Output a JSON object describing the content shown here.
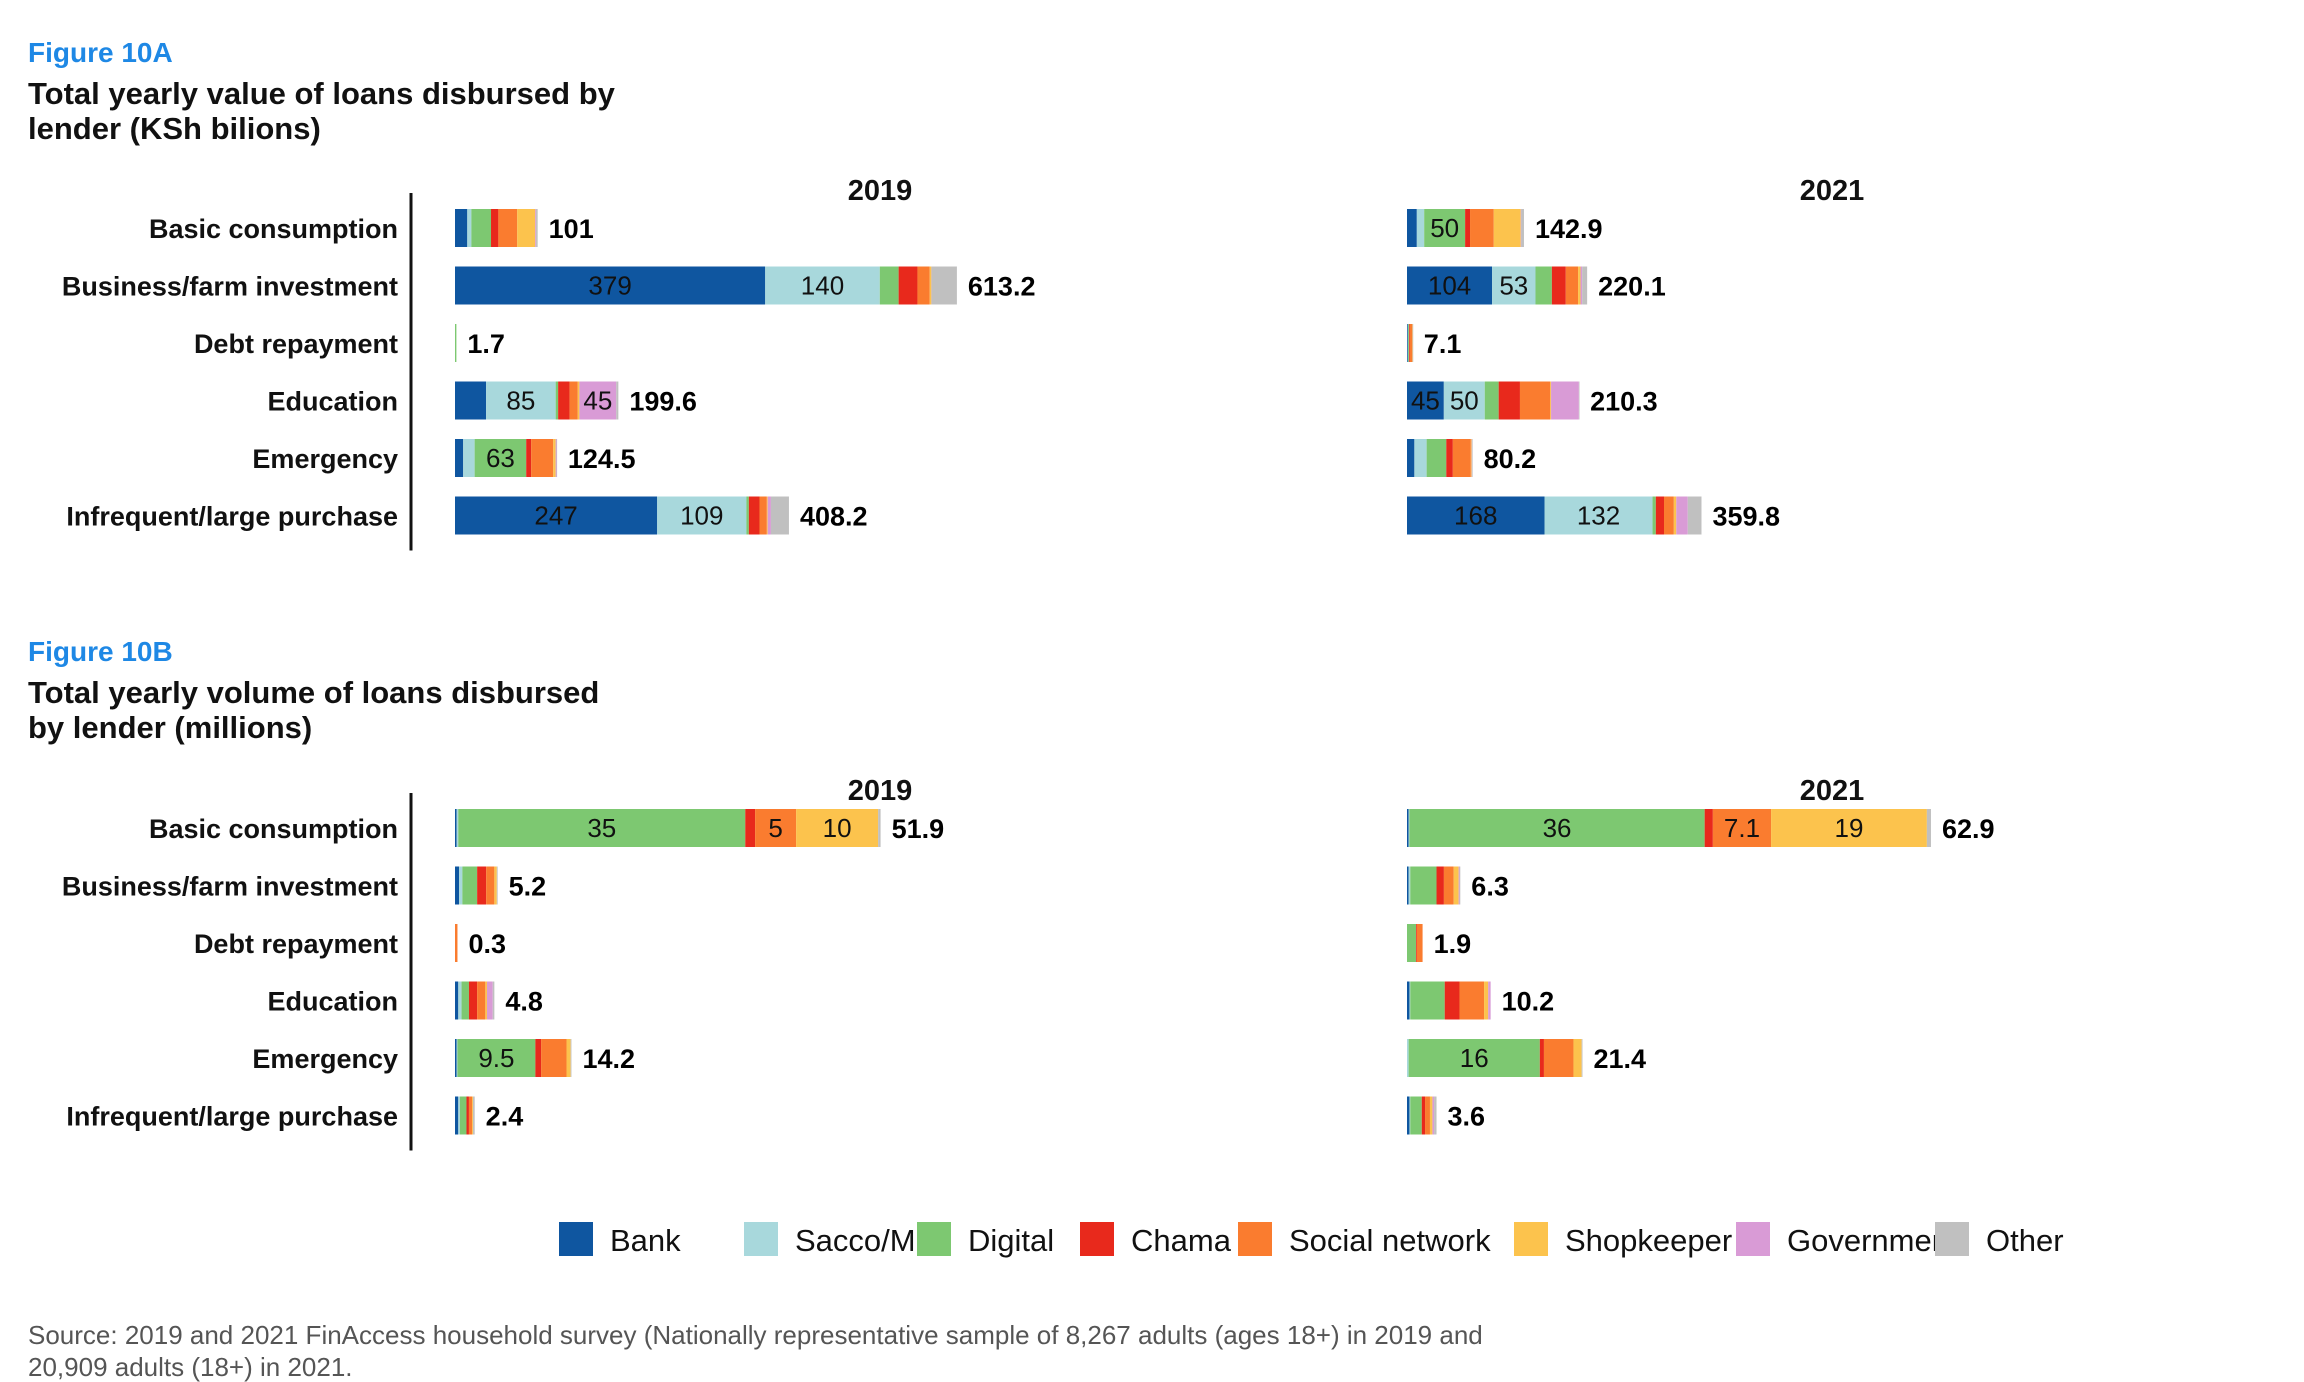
{
  "colors": {
    "Bank": "#0F56A0",
    "Sacco/MFI": "#A8D8DC",
    "Digital": "#7DC871",
    "Chama": "#E8291C",
    "Social network": "#FA7C2F",
    "Shopkeeper": "#FCC34D",
    "Government": "#D99BD6",
    "Other": "#C0C0C0"
  },
  "lenders": [
    "Bank",
    "Sacco/MFI",
    "Digital",
    "Chama",
    "Social network",
    "Shopkeeper",
    "Government",
    "Other"
  ],
  "categories": [
    "Basic consumption",
    "Business/farm investment",
    "Debt repayment",
    "Education",
    "Emergency",
    "Infrequent/large purchase"
  ],
  "source": {
    "line1": "Source: 2019 and 2021 FinAccess household survey (Nationally representative sample of 8,267 adults (ages 18+) in 2019 and",
    "line2": "20,909 adults (18+) in 2021."
  },
  "chart_data": [
    {
      "type": "bar",
      "orientation": "horizontal-stacked",
      "figure_label": "Figure 10A",
      "title_line1": "Total yearly value of loans disbursed by",
      "title_line2": "lender (KSh bilions)",
      "panels": [
        {
          "title": "2019",
          "totals": [
            "101",
            "613.2",
            "1.7",
            "199.6",
            "124.5",
            "408.2"
          ],
          "series": [
            {
              "name": "Bank",
              "values": [
                15,
                379,
                0,
                38,
                10,
                247
              ]
            },
            {
              "name": "Sacco/MFI",
              "values": [
                5,
                140,
                0,
                85,
                14,
                109
              ]
            },
            {
              "name": "Digital",
              "values": [
                24,
                23,
                1.7,
                3,
                63,
                3
              ]
            },
            {
              "name": "Chama",
              "values": [
                9,
                23,
                0,
                14,
                6,
                13
              ]
            },
            {
              "name": "Social network",
              "values": [
                23,
                15,
                0,
                10,
                27,
                9
              ]
            },
            {
              "name": "Shopkeeper",
              "values": [
                22,
                2,
                0,
                2,
                3,
                1
              ]
            },
            {
              "name": "Government",
              "values": [
                1,
                0.2,
                0,
                45,
                1,
                4
              ]
            },
            {
              "name": "Other",
              "values": [
                2,
                31,
                0,
                2.6,
                0.5,
                22
              ]
            }
          ]
        },
        {
          "title": "2021",
          "totals": [
            "142.9",
            "220.1",
            "7.1",
            "210.3",
            "80.2",
            "359.8"
          ],
          "series": [
            {
              "name": "Bank",
              "values": [
                12,
                104,
                1,
                45,
                9,
                168
              ]
            },
            {
              "name": "Sacco/MFI",
              "values": [
                9,
                53,
                0.5,
                50,
                15,
                132
              ]
            },
            {
              "name": "Digital",
              "values": [
                50,
                20,
                1,
                17,
                24,
                4
              ]
            },
            {
              "name": "Chama",
              "values": [
                6,
                17,
                1,
                26,
                8,
                10
              ]
            },
            {
              "name": "Social network",
              "values": [
                29,
                15,
                3,
                37,
                22,
                12
              ]
            },
            {
              "name": "Shopkeeper",
              "values": [
                33,
                3,
                0.4,
                1,
                1,
                3
              ]
            },
            {
              "name": "Government",
              "values": [
                0.5,
                2,
                0,
                34,
                0.5,
                14
              ]
            },
            {
              "name": "Other",
              "values": [
                3.4,
                6.1,
                0.2,
                0.3,
                0.7,
                16.8
              ]
            }
          ]
        }
      ]
    },
    {
      "type": "bar",
      "orientation": "horizontal-stacked",
      "figure_label": "Figure 10B",
      "title_line1": "Total yearly volume of loans disbursed",
      "title_line2": "by lender (millions)",
      "panels": [
        {
          "title": "2019",
          "totals": [
            "51.9",
            "5.2",
            "0.3",
            "4.8",
            "14.2",
            "2.4"
          ],
          "series": [
            {
              "name": "Bank",
              "values": [
                0.2,
                0.5,
                0,
                0.4,
                0.2,
                0.4
              ]
            },
            {
              "name": "Sacco/MFI",
              "values": [
                0.2,
                0.4,
                0,
                0.4,
                0.1,
                0.2
              ]
            },
            {
              "name": "Digital",
              "values": [
                35,
                1.8,
                0,
                0.9,
                9.5,
                0.8
              ]
            },
            {
              "name": "Chama",
              "values": [
                1.2,
                1.1,
                0,
                1.0,
                0.7,
                0.3
              ]
            },
            {
              "name": "Social network",
              "values": [
                5,
                1.0,
                0.3,
                1.0,
                3.1,
                0.4
              ]
            },
            {
              "name": "Shopkeeper",
              "values": [
                10,
                0.3,
                0,
                0.2,
                0.5,
                0.1
              ]
            },
            {
              "name": "Government",
              "values": [
                0,
                0,
                0,
                0.7,
                0,
                0
              ]
            },
            {
              "name": "Other",
              "values": [
                0.3,
                0.1,
                0,
                0.2,
                0.1,
                0.2
              ]
            }
          ]
        },
        {
          "title": "2021",
          "totals": [
            "62.9",
            "6.3",
            "1.9",
            "10.2",
            "21.4",
            "3.6"
          ],
          "series": [
            {
              "name": "Bank",
              "values": [
                0.2,
                0.2,
                0,
                0.3,
                0,
                0.3
              ]
            },
            {
              "name": "Sacco/MFI",
              "values": [
                0.1,
                0.2,
                0,
                0.1,
                0.2,
                0.1
              ]
            },
            {
              "name": "Digital",
              "values": [
                36,
                3.2,
                1.1,
                4.2,
                16,
                1.4
              ]
            },
            {
              "name": "Chama",
              "values": [
                1,
                0.9,
                0.1,
                1.8,
                0.5,
                0.4
              ]
            },
            {
              "name": "Social network",
              "values": [
                7.1,
                1.2,
                0.7,
                3,
                3.6,
                0.6
              ]
            },
            {
              "name": "Shopkeeper",
              "values": [
                19,
                0.6,
                0,
                0.5,
                1.0,
                0.3
              ]
            },
            {
              "name": "Government",
              "values": [
                0,
                0.1,
                0,
                0.3,
                0,
                0.2
              ]
            },
            {
              "name": "Other",
              "values": [
                0.5,
                0.1,
                0,
                0,
                0.1,
                0.3
              ]
            }
          ]
        }
      ]
    }
  ]
}
